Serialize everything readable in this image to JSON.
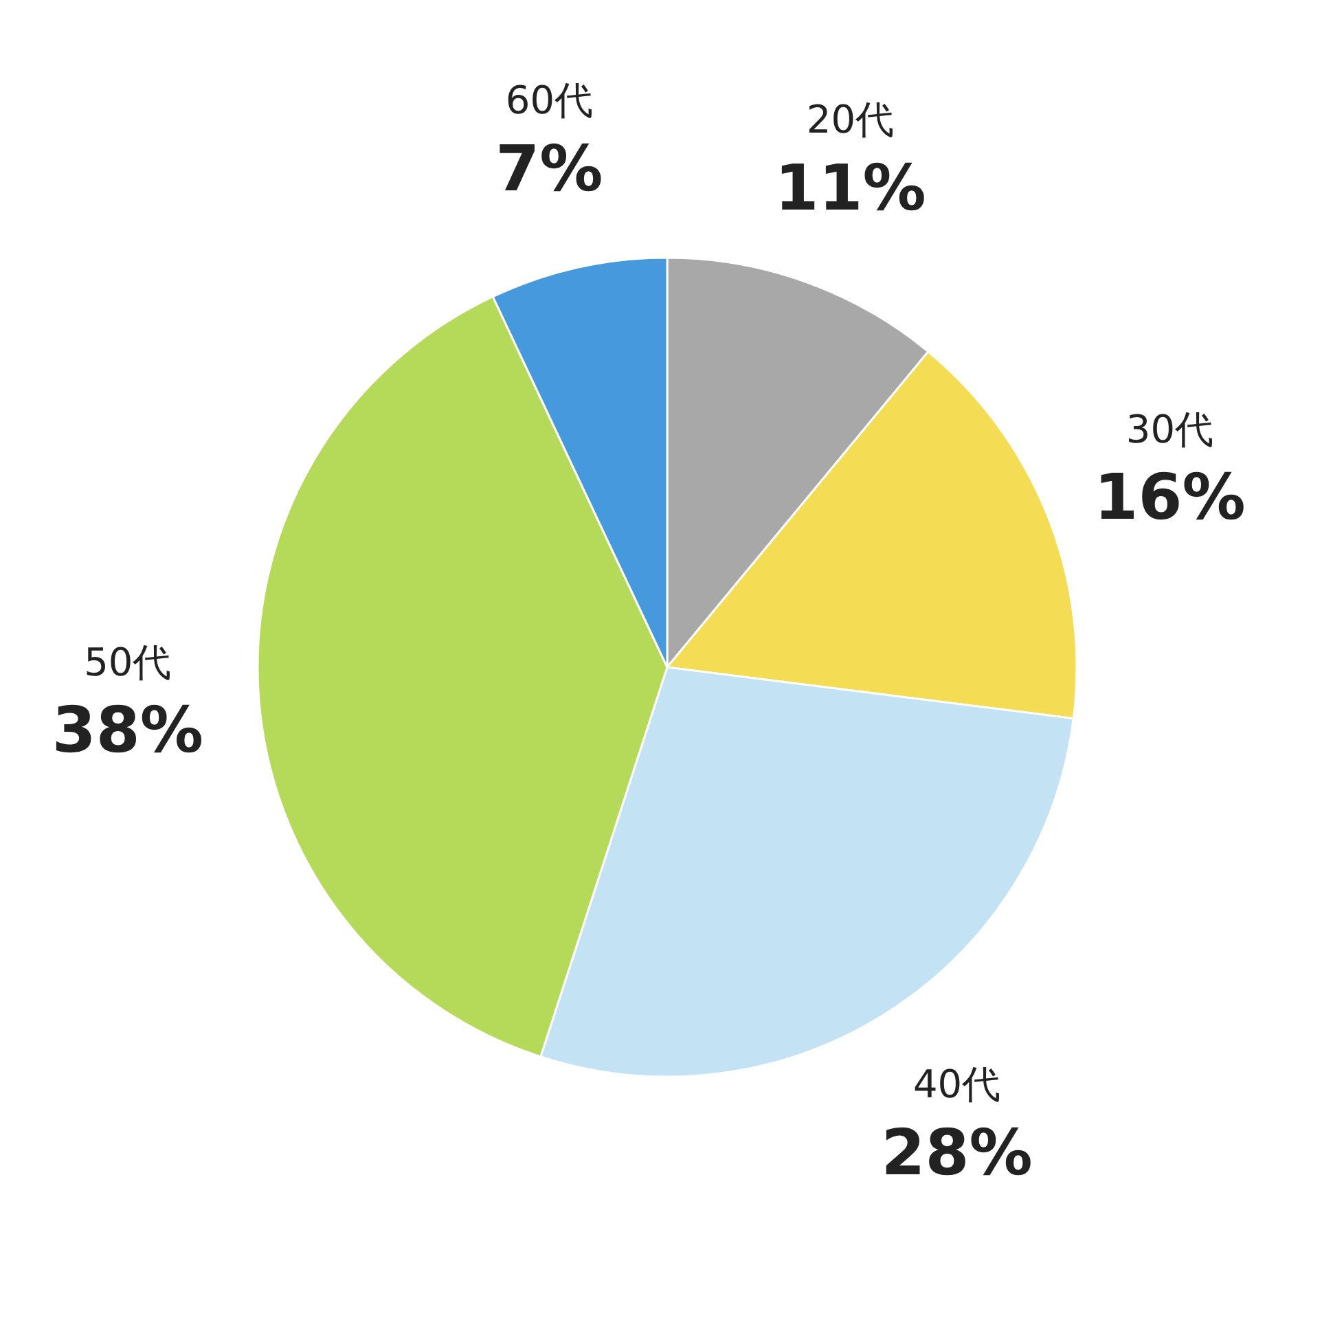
{
  "chart_data": {
    "type": "pie",
    "categories": [
      "20代",
      "30代",
      "40代",
      "50代",
      "60代"
    ],
    "values": [
      11,
      16,
      28,
      38,
      7
    ],
    "colors": [
      "#a8a8a8",
      "#f5dc55",
      "#c3e2f3",
      "#b5da5a",
      "#4699dd"
    ],
    "value_labels": [
      "11%",
      "16%",
      "28%",
      "38%",
      "7%"
    ],
    "legend": false
  }
}
